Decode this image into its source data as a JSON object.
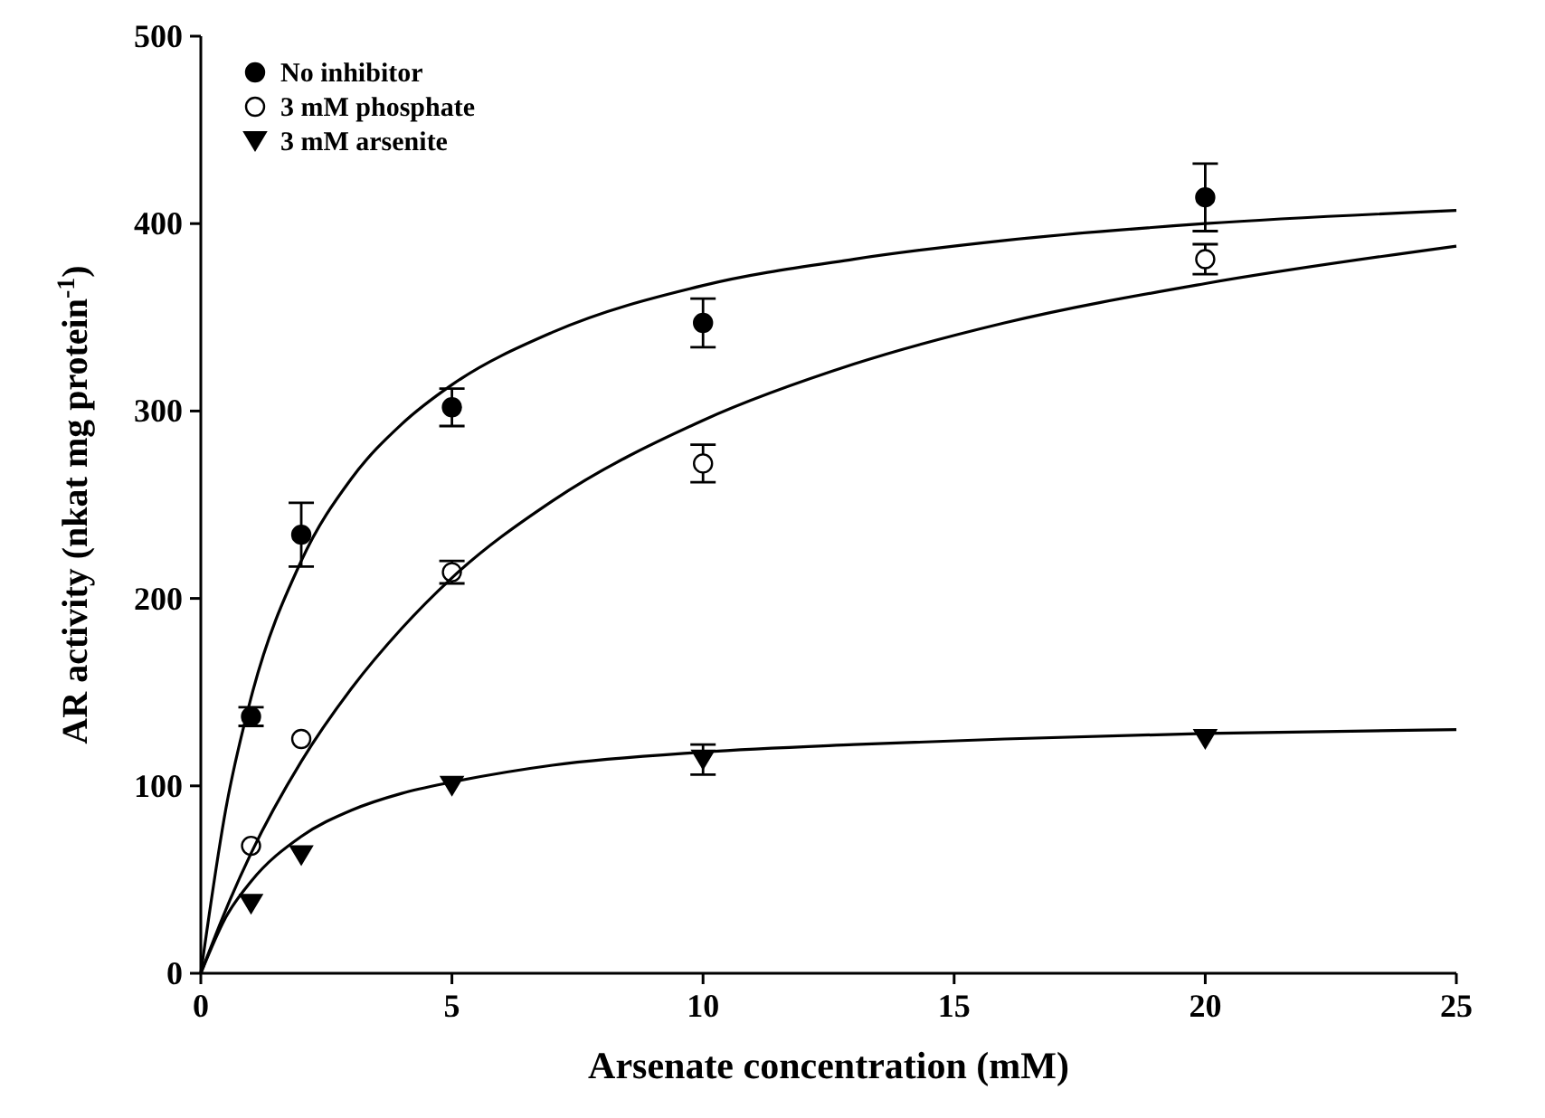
{
  "chart_data": {
    "type": "scatter",
    "xlabel": "Arsenate concentration (mM)",
    "ylabel": "AR activity (nkat mg protein$^{-1}$)",
    "xlim": [
      0,
      25
    ],
    "ylim": [
      0,
      500
    ],
    "xticks": [
      0,
      5,
      10,
      15,
      20,
      25
    ],
    "yticks": [
      0,
      100,
      200,
      300,
      400,
      500
    ],
    "grid": false,
    "legend": "top left",
    "series": [
      {
        "name": "No inhibitor",
        "type": "scatter",
        "marker": "circle",
        "color": "#000000",
        "x": [
          1,
          2,
          5,
          10,
          20
        ],
        "values": [
          137,
          234,
          302,
          347,
          414
        ],
        "errors": [
          5,
          17,
          10,
          13,
          18
        ]
      },
      {
        "name": "3 mM phosphate",
        "type": "scatter",
        "marker": "circle",
        "color": "#ffffff",
        "x": [
          1,
          2,
          5,
          10,
          20
        ],
        "values": [
          68,
          125,
          214,
          272,
          381
        ],
        "errors": [
          null,
          null,
          6,
          10,
          8
        ]
      },
      {
        "name": "3 mM arsenite",
        "type": "scatter",
        "marker": "triangle",
        "color": "#000000",
        "x": [
          1,
          2,
          5,
          10,
          20
        ],
        "values": [
          37,
          63,
          100,
          114,
          125
        ],
        "errors": [
          null,
          null,
          null,
          8,
          null
        ]
      },
      {
        "type": "line",
        "color": "#000000",
        "marker": "none",
        "x": [
          0,
          0.5,
          1,
          2,
          3,
          4,
          5,
          7,
          10,
          13,
          16,
          20,
          25
        ],
        "values": [
          0,
          88,
          147,
          220,
          264,
          293,
          314,
          342,
          367,
          381,
          391,
          400,
          407
        ]
      },
      {
        "type": "line",
        "color": "#000000",
        "marker": "none",
        "x": [
          0,
          0.5,
          1,
          2,
          3,
          4,
          5,
          7,
          10,
          13,
          16,
          20,
          25
        ],
        "values": [
          0,
          34,
          64,
          113,
          152,
          184,
          211,
          252,
          295,
          325,
          347,
          368,
          388
        ]
      },
      {
        "type": "line",
        "color": "#000000",
        "marker": "none",
        "x": [
          0,
          0.5,
          1,
          2,
          3,
          4,
          5,
          7,
          10,
          13,
          16,
          20,
          25
        ],
        "values": [
          0,
          30,
          49,
          73,
          87,
          96,
          102,
          111,
          118,
          122,
          125,
          128,
          130
        ]
      }
    ]
  }
}
